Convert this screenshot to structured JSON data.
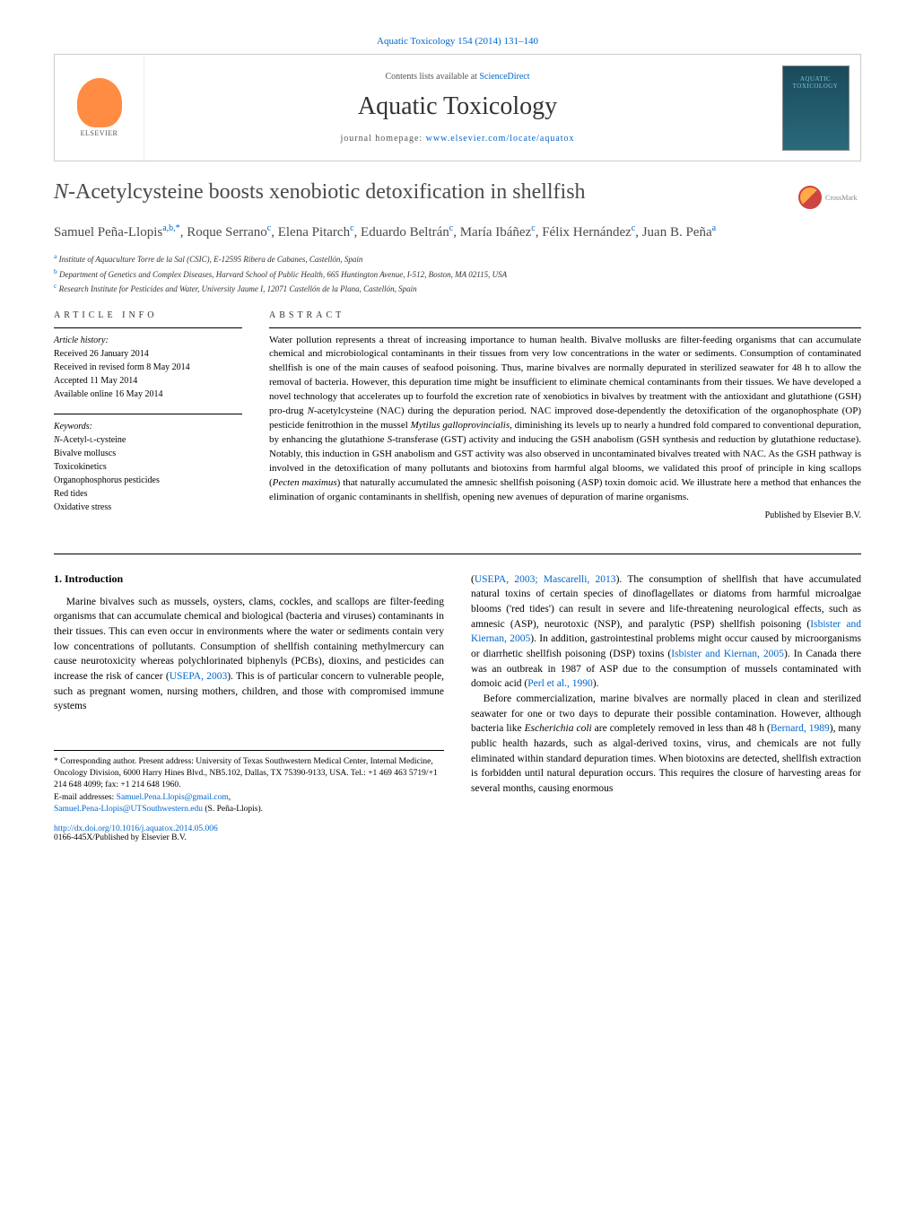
{
  "header": {
    "citation": "Aquatic Toxicology 154 (2014) 131–140",
    "contents_prefix": "Contents lists available at ",
    "contents_link": "ScienceDirect",
    "journal_name": "Aquatic Toxicology",
    "homepage_prefix": "journal homepage: ",
    "homepage_link": "www.elsevier.com/locate/aquatox",
    "elsevier_label": "ELSEVIER",
    "cover_label": "AQUATIC TOXICOLOGY"
  },
  "article": {
    "title_prefix_ital": "N",
    "title_rest": "-Acetylcysteine boosts xenobiotic detoxification in shellfish",
    "crossmark": "CrossMark"
  },
  "authors_html": "Samuel Peña-Llopis",
  "authors": [
    {
      "name": "Samuel Peña-Llopis",
      "sup": "a,b,",
      "star": true
    },
    {
      "name": "Roque Serrano",
      "sup": "c"
    },
    {
      "name": "Elena Pitarch",
      "sup": "c"
    },
    {
      "name": "Eduardo Beltrán",
      "sup": "c"
    },
    {
      "name": "María Ibáñez",
      "sup": "c"
    },
    {
      "name": "Félix Hernández",
      "sup": "c"
    },
    {
      "name": "Juan B. Peña",
      "sup": "a"
    }
  ],
  "affiliations": [
    {
      "sup": "a",
      "text": "Institute of Aquaculture Torre de la Sal (CSIC), E-12595 Ribera de Cabanes, Castellón, Spain"
    },
    {
      "sup": "b",
      "text": "Department of Genetics and Complex Diseases, Harvard School of Public Health, 665 Huntington Avenue, I-512, Boston, MA 02115, USA"
    },
    {
      "sup": "c",
      "text": "Research Institute for Pesticides and Water, University Jaume I, 12071 Castellón de la Plana, Castellón, Spain"
    }
  ],
  "info": {
    "label": "article info",
    "history_label": "Article history:",
    "history": [
      "Received 26 January 2014",
      "Received in revised form 8 May 2014",
      "Accepted 11 May 2014",
      "Available online 16 May 2014"
    ],
    "keywords_label": "Keywords:",
    "keywords": [
      "N-Acetyl-L-cysteine",
      "Bivalve molluscs",
      "Toxicokinetics",
      "Organophosphorus pesticides",
      "Red tides",
      "Oxidative stress"
    ]
  },
  "abstract": {
    "label": "abstract",
    "text": "Water pollution represents a threat of increasing importance to human health. Bivalve mollusks are filter-feeding organisms that can accumulate chemical and microbiological contaminants in their tissues from very low concentrations in the water or sediments. Consumption of contaminated shellfish is one of the main causes of seafood poisoning. Thus, marine bivalves are normally depurated in sterilized seawater for 48 h to allow the removal of bacteria. However, this depuration time might be insufficient to eliminate chemical contaminants from their tissues. We have developed a novel technology that accelerates up to fourfold the excretion rate of xenobiotics in bivalves by treatment with the antioxidant and glutathione (GSH) pro-drug N-acetylcysteine (NAC) during the depuration period. NAC improved dose-dependently the detoxification of the organophosphate (OP) pesticide fenitrothion in the mussel Mytilus galloprovincialis, diminishing its levels up to nearly a hundred fold compared to conventional depuration, by enhancing the glutathione S-transferase (GST) activity and inducing the GSH anabolism (GSH synthesis and reduction by glutathione reductase). Notably, this induction in GSH anabolism and GST activity was also observed in uncontaminated bivalves treated with NAC. As the GSH pathway is involved in the detoxification of many pollutants and biotoxins from harmful algal blooms, we validated this proof of principle in king scallops (Pecten maximus) that naturally accumulated the amnesic shellfish poisoning (ASP) toxin domoic acid. We illustrate here a method that enhances the elimination of organic contaminants in shellfish, opening new avenues of depuration of marine organisms.",
    "published_by": "Published by Elsevier B.V."
  },
  "body": {
    "section_heading": "1. Introduction",
    "col1_p1": "Marine bivalves such as mussels, oysters, clams, cockles, and scallops are filter-feeding organisms that can accumulate chemical and biological (bacteria and viruses) contaminants in their tissues. This can even occur in environments where the water or sediments contain very low concentrations of pollutants. Consumption of shellfish containing methylmercury can cause neurotoxicity whereas polychlorinated biphenyls (PCBs), dioxins, and pesticides can increase the risk of cancer (USEPA, 2003). This is of particular concern to vulnerable people, such as pregnant women, nursing mothers, children, and those with compromised immune systems",
    "col2_p1": "(USEPA, 2003; Mascarelli, 2013). The consumption of shellfish that have accumulated natural toxins of certain species of dinoflagellates or diatoms from harmful microalgae blooms ('red tides') can result in severe and life-threatening neurological effects, such as amnesic (ASP), neurotoxic (NSP), and paralytic (PSP) shellfish poisoning (Isbister and Kiernan, 2005). In addition, gastrointestinal problems might occur caused by microorganisms or diarrhetic shellfish poisoning (DSP) toxins (Isbister and Kiernan, 2005). In Canada there was an outbreak in 1987 of ASP due to the consumption of mussels contaminated with domoic acid (Perl et al., 1990).",
    "col2_p2": "Before commercialization, marine bivalves are normally placed in clean and sterilized seawater for one or two days to depurate their possible contamination. However, although bacteria like Escherichia coli are completely removed in less than 48 h (Bernard, 1989), many public health hazards, such as algal-derived toxins, virus, and chemicals are not fully eliminated within standard depuration times. When biotoxins are detected, shellfish extraction is forbidden until natural depuration occurs. This requires the closure of harvesting areas for several months, causing enormous"
  },
  "footnotes": {
    "corresponding": "* Corresponding author. Present address: University of Texas Southwestern Medical Center, Internal Medicine, Oncology Division, 6000 Harry Hines Blvd., NB5.102, Dallas, TX 75390-9133, USA. Tel.: +1 469 463 5719/+1 214 648 4099; fax: +1 214 648 1960.",
    "email_label": "E-mail addresses: ",
    "email1": "Samuel.Pena.Llopis@gmail.com",
    "email2": "Samuel.Pena-Llopis@UTSouthwestern.edu",
    "email_suffix": " (S. Peña-Llopis).",
    "doi": "http://dx.doi.org/10.1016/j.aquatox.2014.05.006",
    "copyright": "0166-445X/Published by Elsevier B.V."
  },
  "links": {
    "usepa2003": "USEPA, 2003",
    "mascarelli2013": "Mascarelli, 2013",
    "isbister2005": "Isbister and Kiernan, 2005",
    "perl1990": "Perl et al., 1990",
    "bernard1989": "Bernard, 1989"
  },
  "colors": {
    "link": "#0066cc",
    "text": "#000000",
    "heading": "#4a4a4a",
    "elsevier": "#ff8c42",
    "cover_bg_top": "#1a4a5a",
    "cover_bg_bot": "#2a6a7a",
    "cover_text": "#7cc5d8",
    "border": "#cccccc"
  }
}
